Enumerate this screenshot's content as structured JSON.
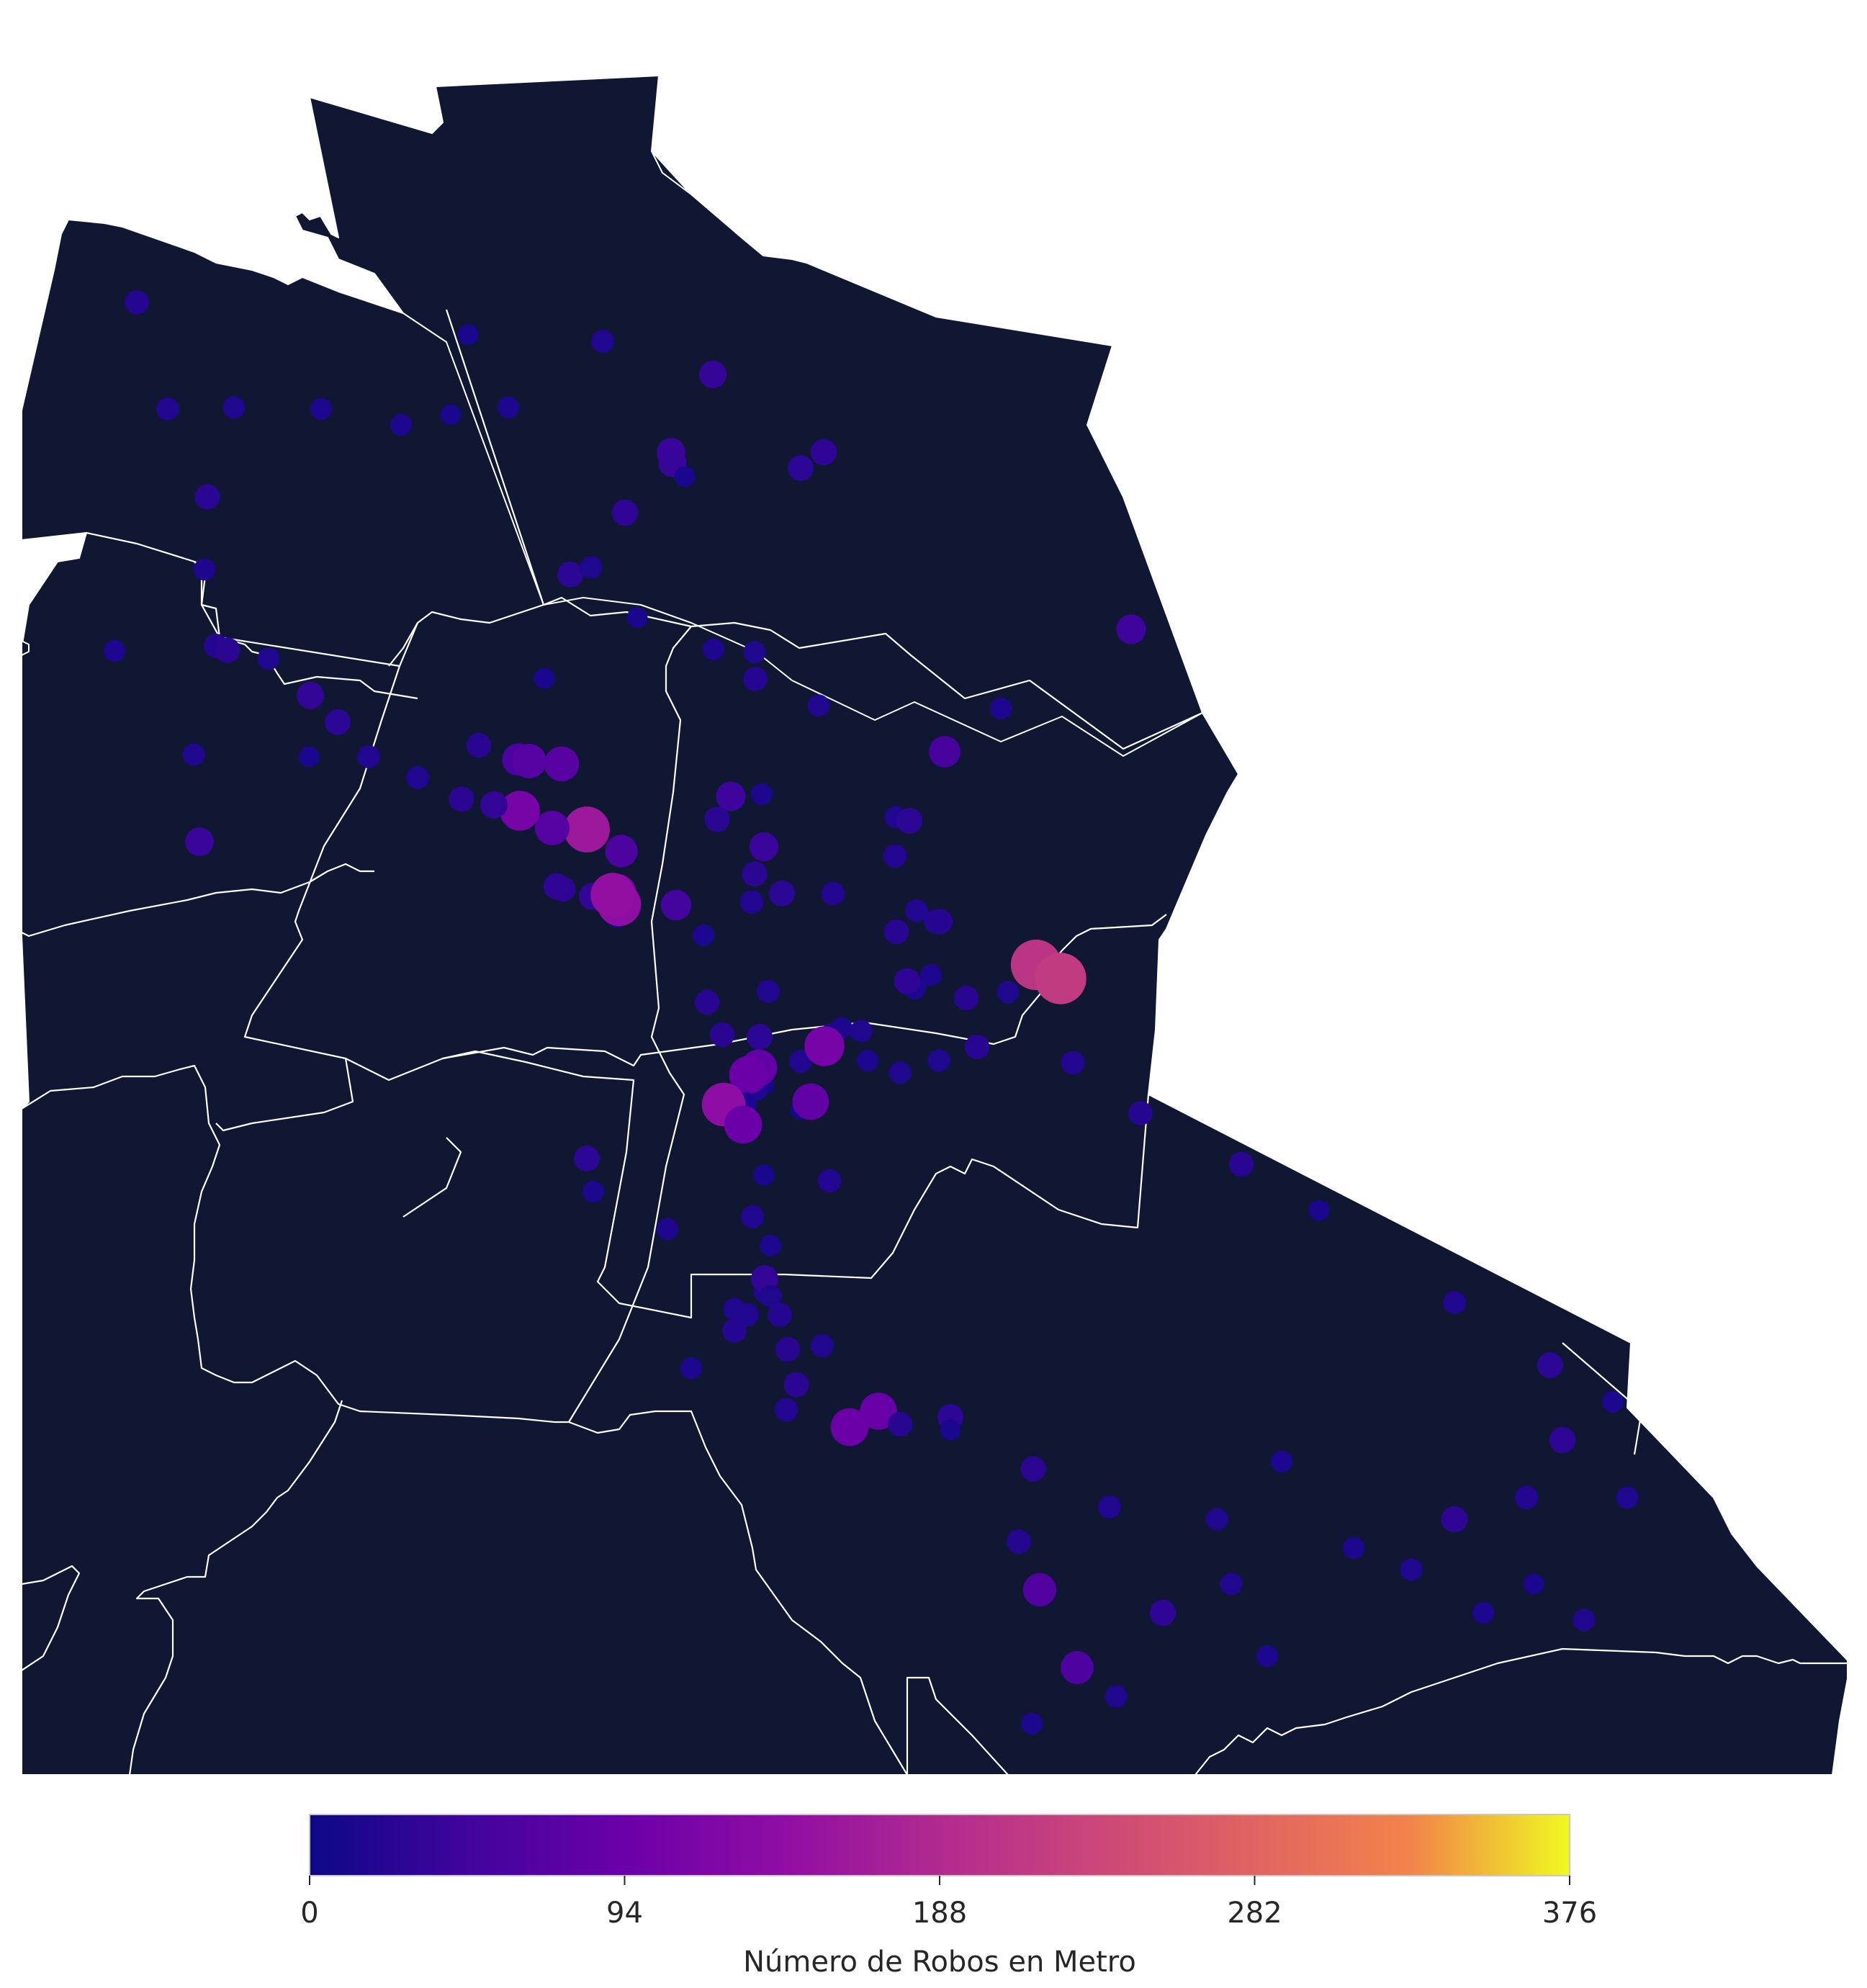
{
  "chart_data": {
    "type": "scatter",
    "title": "",
    "colorbar": {
      "label": "Número de Robos en Metro",
      "ticks": [
        "0",
        "94",
        "188",
        "282",
        "376"
      ],
      "min": 0,
      "max": 376,
      "colormap": "plasma",
      "orientation": "horizontal",
      "placement": "bottom"
    },
    "background_color": "#0f1733",
    "boundary_color": "#ffffff",
    "points_note_units": "value = Número de Robos en Metro",
    "points": [
      {
        "v": 22
      },
      {
        "v": 18
      },
      {
        "v": 16
      },
      {
        "v": 14
      },
      {
        "v": 14
      },
      {
        "v": 12
      },
      {
        "v": 26
      },
      {
        "v": 15
      },
      {
        "v": 35
      },
      {
        "v": 12
      },
      {
        "v": 14
      },
      {
        "v": 40
      },
      {
        "v": 38
      },
      {
        "v": 12
      },
      {
        "v": 28
      },
      {
        "v": 30
      },
      {
        "v": 18
      },
      {
        "v": 30
      },
      {
        "v": 28
      },
      {
        "v": 16
      },
      {
        "v": 12
      },
      {
        "v": 22
      },
      {
        "v": 14
      },
      {
        "v": 14
      },
      {
        "v": 45
      },
      {
        "v": 55
      },
      {
        "v": 16
      },
      {
        "v": 22
      },
      {
        "v": 14
      },
      {
        "v": 16
      },
      {
        "v": 26
      },
      {
        "v": 16
      },
      {
        "v": 34
      },
      {
        "v": 28
      },
      {
        "v": 16
      },
      {
        "v": 40
      },
      {
        "v": 60
      },
      {
        "v": 72
      },
      {
        "v": 75
      },
      {
        "v": 14
      },
      {
        "v": 24
      },
      {
        "v": 18
      },
      {
        "v": 18
      },
      {
        "v": 12
      },
      {
        "v": 12
      },
      {
        "v": 40
      },
      {
        "v": 160
      },
      {
        "v": 72
      },
      {
        "v": 16
      },
      {
        "v": 20
      },
      {
        "v": 28
      },
      {
        "v": 14
      },
      {
        "v": 60
      },
      {
        "v": 26
      },
      {
        "v": 30
      },
      {
        "v": 34
      },
      {
        "v": 110
      },
      {
        "v": 26
      },
      {
        "v": 34
      },
      {
        "v": 44
      },
      {
        "v": 42
      },
      {
        "v": 24
      },
      {
        "v": 24
      },
      {
        "v": 105
      },
      {
        "v": 16
      },
      {
        "v": 26
      },
      {
        "v": 20
      },
      {
        "v": 26
      },
      {
        "v": 28
      },
      {
        "v": 140
      },
      {
        "v": 145
      },
      {
        "v": 50
      },
      {
        "v": 14
      },
      {
        "v": 24
      },
      {
        "v": 18
      },
      {
        "v": 24
      },
      {
        "v": 16
      },
      {
        "v": 30
      },
      {
        "v": 28
      },
      {
        "v": 14
      },
      {
        "v": 10
      },
      {
        "v": 18
      },
      {
        "v": 20
      },
      {
        "v": 18
      },
      {
        "v": 14
      },
      {
        "v": 24
      },
      {
        "v": 22
      },
      {
        "v": 24
      },
      {
        "v": 16
      },
      {
        "v": 16
      },
      {
        "v": 206
      },
      {
        "v": 215
      },
      {
        "v": 20
      },
      {
        "v": 22
      },
      {
        "v": 85
      },
      {
        "v": 95
      },
      {
        "v": 18
      },
      {
        "v": 14
      },
      {
        "v": 24
      },
      {
        "v": 140
      },
      {
        "v": 110
      },
      {
        "v": 16
      },
      {
        "v": 14
      },
      {
        "v": 14
      },
      {
        "v": 30
      },
      {
        "v": 16
      },
      {
        "v": 10
      },
      {
        "v": 85
      },
      {
        "v": 95
      },
      {
        "v": 12
      },
      {
        "v": 18
      },
      {
        "v": 14
      },
      {
        "v": 20
      },
      {
        "v": 16
      },
      {
        "v": 34
      },
      {
        "v": 16
      },
      {
        "v": 14
      },
      {
        "v": 14
      },
      {
        "v": 28
      },
      {
        "v": 16
      },
      {
        "v": 22
      },
      {
        "v": 14
      },
      {
        "v": 18
      },
      {
        "v": 22
      },
      {
        "v": 24
      },
      {
        "v": 26
      },
      {
        "v": 18
      },
      {
        "v": 20
      },
      {
        "v": 95
      },
      {
        "v": 90
      },
      {
        "v": 28
      },
      {
        "v": 26
      },
      {
        "v": 18
      },
      {
        "v": 24
      },
      {
        "v": 12
      },
      {
        "v": 22
      },
      {
        "v": 65
      },
      {
        "v": 62
      },
      {
        "v": 16
      },
      {
        "v": 14
      },
      {
        "v": 24
      },
      {
        "v": 12
      },
      {
        "v": 18
      },
      {
        "v": 28
      },
      {
        "v": 14
      },
      {
        "v": 30
      },
      {
        "v": 20
      },
      {
        "v": 14
      },
      {
        "v": 16
      },
      {
        "v": 30
      },
      {
        "v": 16
      },
      {
        "v": 14
      },
      {
        "v": 12
      },
      {
        "v": 16
      },
      {
        "v": 16
      },
      {
        "v": 30
      },
      {
        "v": 16
      },
      {
        "v": 14
      },
      {
        "v": 14
      },
      {
        "v": 18
      },
      {
        "v": 16
      },
      {
        "v": 16
      },
      {
        "v": 16
      },
      {
        "v": 14
      },
      {
        "v": 26
      }
    ]
  }
}
